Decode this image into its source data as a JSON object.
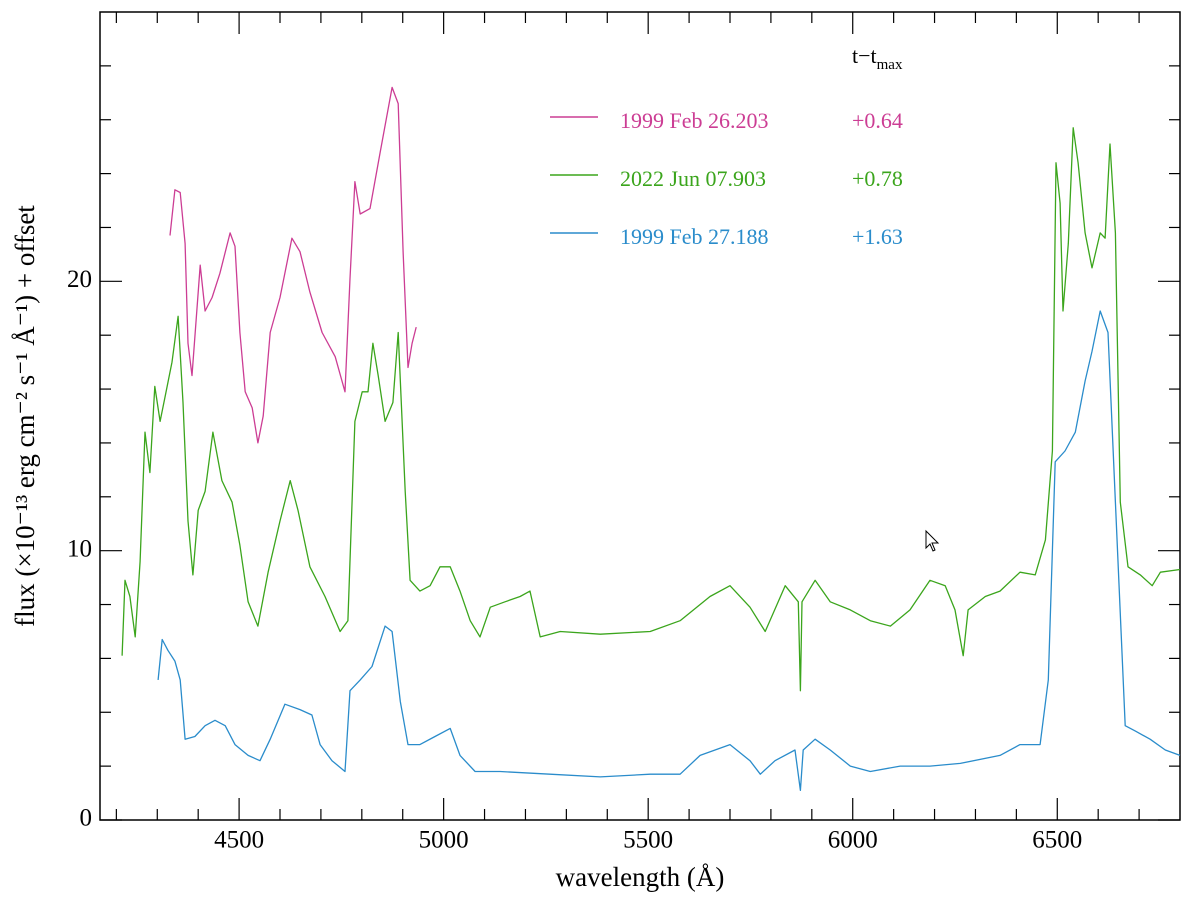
{
  "chart_data": {
    "type": "line",
    "x_label": "wavelength (Å)",
    "y_label": "flux (×10⁻¹³ erg cm⁻² s⁻¹ Å⁻¹) + offset",
    "legend_title": "t−t",
    "legend_title_subscript": "max",
    "xlim": [
      4160,
      6800
    ],
    "ylim": [
      0,
      30
    ],
    "xticks": [
      4500,
      5000,
      5500,
      6000,
      6500
    ],
    "yticks": [
      0,
      10,
      20
    ],
    "x_minor_ticks": [
      4200,
      4300,
      4400,
      4600,
      4700,
      4800,
      4900,
      5100,
      5200,
      5300,
      5400,
      5600,
      5700,
      5800,
      5900,
      6100,
      6200,
      6300,
      6400,
      6600,
      6700
    ],
    "y_minor_ticks": [
      2,
      4,
      6,
      8,
      12,
      14,
      16,
      18,
      22,
      24,
      26,
      28
    ],
    "series": [
      {
        "name": "1999 Feb 26.203",
        "phase": "+0.64",
        "color": "#cc3d94",
        "x": [
          4331,
          4343,
          4356,
          4368,
          4375,
          4385,
          4397,
          4405,
          4417,
          4434,
          4453,
          4478,
          4490,
          4502,
          4515,
          4532,
          4546,
          4559,
          4576,
          4600,
          4629,
          4649,
          4673,
          4703,
          4735,
          4759,
          4771,
          4783,
          4796,
          4820,
          4845,
          4874,
          4889,
          4901,
          4913,
          4923,
          4933
        ],
        "values": [
          21.7,
          23.4,
          23.3,
          21.4,
          17.7,
          16.5,
          19.0,
          20.6,
          18.9,
          19.4,
          20.3,
          21.8,
          21.3,
          18.1,
          15.9,
          15.3,
          14.0,
          15.0,
          18.1,
          19.4,
          21.6,
          21.1,
          19.6,
          18.1,
          17.2,
          15.9,
          20.1,
          23.7,
          22.5,
          22.7,
          24.8,
          27.2,
          26.6,
          21.1,
          16.8,
          17.7,
          18.3
        ]
      },
      {
        "name": "2022 Jun 07.903",
        "phase": "+0.78",
        "color": "#3ba51c",
        "x": [
          4214,
          4221,
          4233,
          4246,
          4258,
          4270,
          4282,
          4294,
          4307,
          4319,
          4336,
          4351,
          4363,
          4375,
          4387,
          4400,
          4417,
          4436,
          4458,
          4483,
          4502,
          4522,
          4546,
          4571,
          4600,
          4625,
          4644,
          4673,
          4710,
          4747,
          4766,
          4783,
          4801,
          4815,
          4827,
          4840,
          4857,
          4876,
          4889,
          4906,
          4918,
          4942,
          4967,
          4991,
          5016,
          5040,
          5065,
          5089,
          5114,
          5150,
          5187,
          5211,
          5236,
          5285,
          5383,
          5505,
          5578,
          5651,
          5700,
          5749,
          5786,
          5835,
          5867,
          5872,
          5876,
          5908,
          5945,
          5994,
          6043,
          6092,
          6140,
          6189,
          6226,
          6250,
          6270,
          6282,
          6324,
          6360,
          6409,
          6446,
          6471,
          6488,
          6497,
          6507,
          6514,
          6527,
          6539,
          6551,
          6568,
          6585,
          6605,
          6617,
          6629,
          6642,
          6654,
          6673,
          6703,
          6732,
          6752,
          6800
        ],
        "values": [
          6.1,
          8.9,
          8.3,
          6.8,
          9.6,
          14.4,
          12.9,
          16.1,
          14.8,
          15.7,
          17.0,
          18.7,
          15.5,
          11.1,
          9.1,
          11.5,
          12.2,
          14.4,
          12.6,
          11.8,
          10.2,
          8.1,
          7.2,
          9.2,
          11.1,
          12.6,
          11.5,
          9.4,
          8.3,
          7.0,
          7.4,
          14.8,
          15.9,
          15.9,
          17.7,
          16.5,
          14.8,
          15.5,
          18.1,
          12.2,
          8.9,
          8.5,
          8.7,
          9.4,
          9.4,
          8.5,
          7.4,
          6.8,
          7.9,
          8.1,
          8.3,
          8.5,
          6.8,
          7.0,
          6.9,
          7.0,
          7.4,
          8.3,
          8.7,
          7.9,
          7.0,
          8.7,
          8.1,
          4.8,
          8.1,
          8.9,
          8.1,
          7.8,
          7.4,
          7.2,
          7.8,
          8.9,
          8.7,
          7.8,
          6.1,
          7.8,
          8.3,
          8.5,
          9.2,
          9.1,
          10.4,
          13.7,
          24.4,
          22.9,
          18.9,
          21.4,
          25.7,
          24.4,
          21.8,
          20.5,
          21.8,
          21.6,
          25.1,
          21.8,
          11.8,
          9.4,
          9.1,
          8.7,
          9.2,
          9.3
        ]
      },
      {
        "name": "1999 Feb 27.188",
        "phase": "+1.63",
        "color": "#2a8ccb",
        "x": [
          4302,
          4312,
          4326,
          4343,
          4356,
          4368,
          4392,
          4417,
          4441,
          4466,
          4490,
          4522,
          4551,
          4576,
          4612,
          4649,
          4678,
          4698,
          4727,
          4759,
          4771,
          4796,
          4825,
          4857,
          4874,
          4894,
          4913,
          4942,
          4979,
          5016,
          5040,
          5077,
          5138,
          5260,
          5383,
          5505,
          5578,
          5627,
          5700,
          5749,
          5774,
          5810,
          5859,
          5872,
          5879,
          5908,
          5945,
          5994,
          6043,
          6116,
          6189,
          6263,
          6360,
          6409,
          6458,
          6478,
          6495,
          6519,
          6544,
          6568,
          6585,
          6605,
          6624,
          6642,
          6666,
          6691,
          6727,
          6764,
          6800
        ],
        "values": [
          5.2,
          6.7,
          6.3,
          5.9,
          5.2,
          3.0,
          3.1,
          3.5,
          3.7,
          3.5,
          2.8,
          2.4,
          2.2,
          3.0,
          4.3,
          4.1,
          3.9,
          2.8,
          2.2,
          1.8,
          4.8,
          5.2,
          5.7,
          7.2,
          7.0,
          4.4,
          2.8,
          2.8,
          3.1,
          3.4,
          2.4,
          1.8,
          1.8,
          1.7,
          1.6,
          1.7,
          1.7,
          2.4,
          2.8,
          2.2,
          1.7,
          2.2,
          2.6,
          1.1,
          2.6,
          3.0,
          2.6,
          2.0,
          1.8,
          2.0,
          2.0,
          2.1,
          2.4,
          2.8,
          2.8,
          5.2,
          13.3,
          13.7,
          14.4,
          16.3,
          17.4,
          18.9,
          18.1,
          11.8,
          3.5,
          3.3,
          3.0,
          2.6,
          2.4
        ]
      }
    ]
  }
}
